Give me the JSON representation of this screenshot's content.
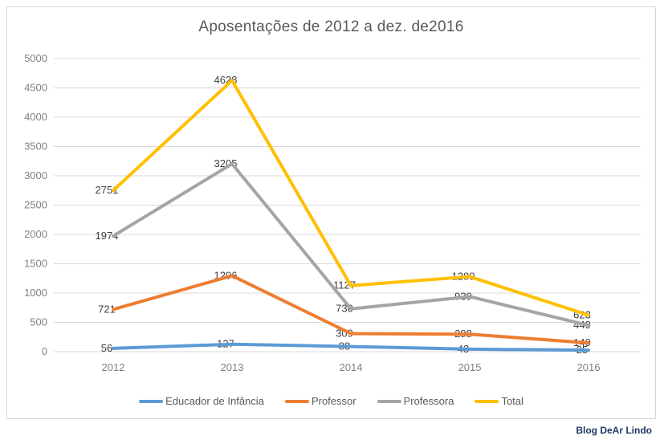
{
  "watermark": "Blog DeAr Lindo",
  "colors": {
    "grid": "#d9d9d9",
    "axis_text": "#808080",
    "data_label_text": "#404040",
    "title_text": "#595959",
    "frame_border": "#d7d7d7",
    "watermark_text": "#1f3864"
  },
  "chart_data": {
    "type": "line",
    "title": "Aposentações de 2012 a dez. de2016",
    "xlabel": "",
    "ylabel": "",
    "categories": [
      "2012",
      "2013",
      "2014",
      "2015",
      "2016"
    ],
    "series": [
      {
        "name": "Educador de Infância",
        "color": "#5b9bd5",
        "values": [
          56,
          127,
          88,
          43,
          25
        ]
      },
      {
        "name": "Professor",
        "color": "#ed7d31",
        "values": [
          721,
          1296,
          309,
          298,
          149
        ]
      },
      {
        "name": "Professora",
        "color": "#a5a5a5",
        "values": [
          1974,
          3205,
          730,
          939,
          449
        ]
      },
      {
        "name": "Total",
        "color": "#ffc000",
        "values": [
          2751,
          4628,
          1127,
          1280,
          623
        ]
      }
    ],
    "ylim": [
      0,
      5000
    ],
    "yticks": [
      0,
      500,
      1000,
      1500,
      2000,
      2500,
      3000,
      3500,
      4000,
      4500,
      5000
    ],
    "grid": true,
    "data_labels": true,
    "legend_position": "bottom"
  }
}
